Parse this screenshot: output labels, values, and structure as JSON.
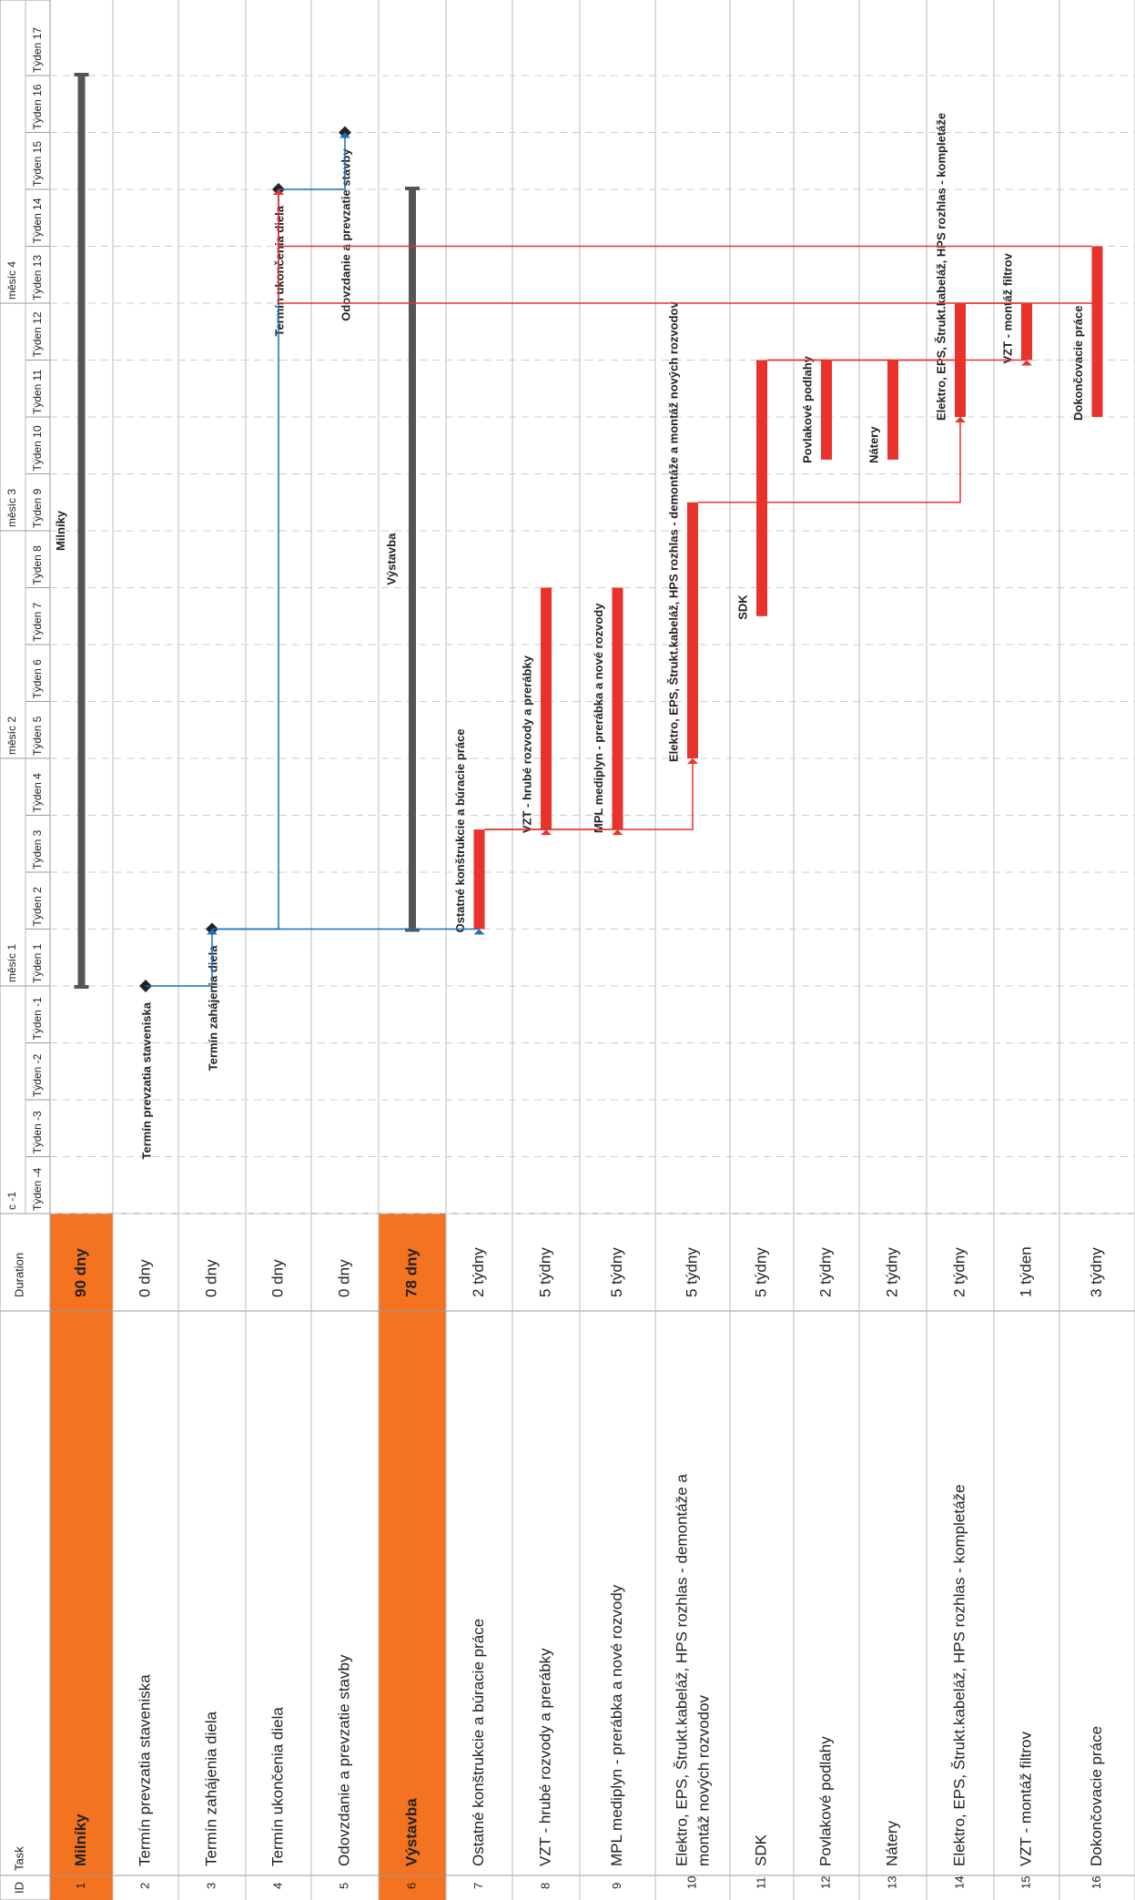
{
  "headers": {
    "id": "ID",
    "task": "Task",
    "duration": "Duration"
  },
  "timescale": {
    "months": [
      {
        "label": "c -1",
        "start_week": -4
      },
      {
        "label": "měsíc 1",
        "start_week": 1
      },
      {
        "label": "měsíc 2",
        "start_week": 5
      },
      {
        "label": "měsíc 3",
        "start_week": 9
      },
      {
        "label": "měsíc 4",
        "start_week": 13
      }
    ],
    "weeks": [
      {
        "label": "Týden -4",
        "num": -4
      },
      {
        "label": "Týden -3",
        "num": -3
      },
      {
        "label": "Týden -2",
        "num": -2
      },
      {
        "label": "Týden -1",
        "num": -1
      },
      {
        "label": "Týden 1",
        "num": 1
      },
      {
        "label": "Týden 2",
        "num": 2
      },
      {
        "label": "Týden 3",
        "num": 3
      },
      {
        "label": "Týden 4",
        "num": 4
      },
      {
        "label": "Týden 5",
        "num": 5
      },
      {
        "label": "Týden 6",
        "num": 6
      },
      {
        "label": "Týden 7",
        "num": 7
      },
      {
        "label": "Týden 8",
        "num": 8
      },
      {
        "label": "Týden 9",
        "num": 9
      },
      {
        "label": "Týden 10",
        "num": 10
      },
      {
        "label": "Týden 11",
        "num": 11
      },
      {
        "label": "Týden 12",
        "num": 12
      },
      {
        "label": "Týden 13",
        "num": 13
      },
      {
        "label": "Týden 14",
        "num": 14
      },
      {
        "label": "Týden 15",
        "num": 15
      },
      {
        "label": "Týden 16",
        "num": 16
      },
      {
        "label": "Týden 17",
        "num": 17
      }
    ]
  },
  "chart_data": {
    "type": "gantt",
    "time_unit": "week",
    "week_axis": [
      -4,
      -3,
      -2,
      -1,
      1,
      2,
      3,
      4,
      5,
      6,
      7,
      8,
      9,
      10,
      11,
      12,
      13,
      14,
      15,
      16,
      17
    ],
    "tasks": [
      {
        "id": "1",
        "name": "Milníky",
        "duration": "90 dny",
        "summary": true,
        "start_week": 1,
        "end_week": 17,
        "bar_label": "Milníky"
      },
      {
        "id": "2",
        "name": "Termín prevzatia staveniska",
        "duration": "0 dny",
        "milestone": true,
        "at_week": 1,
        "bar_label": "Termín prevzatia staveniska"
      },
      {
        "id": "3",
        "name": "Termín zahájenia diela",
        "duration": "0 dny",
        "milestone": true,
        "at_week": 2,
        "bar_label": "Termín zahájenia diela"
      },
      {
        "id": "4",
        "name": "Termín ukončenia diela",
        "duration": "0 dny",
        "milestone": true,
        "at_week": 15,
        "bar_label": "Termín ukončenia diela"
      },
      {
        "id": "5",
        "name": "Odovzdanie a prevzatie stavby",
        "duration": "0 dny",
        "milestone": true,
        "at_week": 16,
        "bar_label": "Odovzdanie a prevzatie stavby"
      },
      {
        "id": "6",
        "name": "Výstavba",
        "duration": "78 dny",
        "summary": true,
        "start_week": 2,
        "end_week": 15,
        "bar_label": "Výstavba"
      },
      {
        "id": "7",
        "name": "Ostatné konštrukcie a búracie práce",
        "duration": "2 týdny",
        "start_week": 2,
        "end_week": 3.75,
        "bar_label": "Ostatné konštrukcie a búracie práce"
      },
      {
        "id": "8",
        "name": "VZT - hrubé rozvody a prerábky",
        "duration": "5 týdny",
        "start_week": 3.75,
        "end_week": 8,
        "bar_label": "VZT - hrubé rozvody a prerábky"
      },
      {
        "id": "9",
        "name": "MPL mediplyn - prerábka a nové rozvody",
        "duration": "5 týdny",
        "start_week": 3.75,
        "end_week": 8,
        "bar_label": "MPL mediplyn - prerábka a nové rozvody"
      },
      {
        "id": "10",
        "name": "Elektro, EPS, Štrukt.kabeláž, HPS rozhlas - demontáže a montáž nových rozvodov",
        "duration": "5 týdny",
        "start_week": 5,
        "end_week": 9.5,
        "bar_label": "Elektro, EPS, Štrukt.kabeláž, HPS rozhlas - demontáže a montáž nových rozvodov"
      },
      {
        "id": "11",
        "name": "SDK",
        "duration": "5 týdny",
        "start_week": 7.5,
        "end_week": 12,
        "bar_label": "SDK"
      },
      {
        "id": "12",
        "name": "Povlakové podlahy",
        "duration": "2 týdny",
        "start_week": 10.25,
        "end_week": 12,
        "bar_label": "Povlakové podlahy"
      },
      {
        "id": "13",
        "name": "Nátery",
        "duration": "2 týdny",
        "start_week": 10.25,
        "end_week": 12,
        "bar_label": "Nátery"
      },
      {
        "id": "14",
        "name": "Elektro, EPS, Štrukt.kabeláž, HPS rozhlas - kompletáže",
        "duration": "2 týdny",
        "start_week": 11,
        "end_week": 13,
        "bar_label": "Elektro, EPS, Štrukt.kabeláž, HPS rozhlas - kompletáže"
      },
      {
        "id": "15",
        "name": "VZT - montáž filtrov",
        "duration": "1 týden",
        "start_week": 12,
        "end_week": 13,
        "bar_label": "VZT - montáž filtrov"
      },
      {
        "id": "16",
        "name": "Dokončovacie práce",
        "duration": "3 týdny",
        "start_week": 11,
        "end_week": 14,
        "bar_label": "Dokončovacie práce"
      }
    ],
    "links": [
      {
        "from": "2",
        "to": "3",
        "color": "blue"
      },
      {
        "from": "3",
        "to": "7",
        "color": "blue"
      },
      {
        "from": "3",
        "to": "4",
        "color": "blue"
      },
      {
        "from": "4",
        "to": "5",
        "color": "blue"
      },
      {
        "from": "7",
        "to": "8",
        "color": "red"
      },
      {
        "from": "7",
        "to": "9",
        "color": "red"
      },
      {
        "from": "7",
        "to": "10",
        "color": "red"
      },
      {
        "from": "10",
        "to": "11",
        "color": "red"
      },
      {
        "from": "10",
        "to": "14",
        "color": "red"
      },
      {
        "from": "11",
        "to": "12",
        "color": "red"
      },
      {
        "from": "11",
        "to": "15",
        "color": "red"
      },
      {
        "from": "12",
        "to": "13",
        "color": "red"
      },
      {
        "from": "13",
        "to": "14",
        "color": "red"
      },
      {
        "from": "14",
        "to": "16",
        "color": "red"
      },
      {
        "from": "15",
        "to": "4",
        "color": "red"
      },
      {
        "from": "16",
        "to": "4",
        "color": "red"
      }
    ]
  },
  "colors": {
    "summary_fill": "#f47320",
    "summary_bar": "#555555",
    "task_bar": "#e8322b",
    "milestone": "#222222",
    "link_blue": "#1a6fb5",
    "link_red": "#e8322b",
    "grid": "#cccccc"
  }
}
